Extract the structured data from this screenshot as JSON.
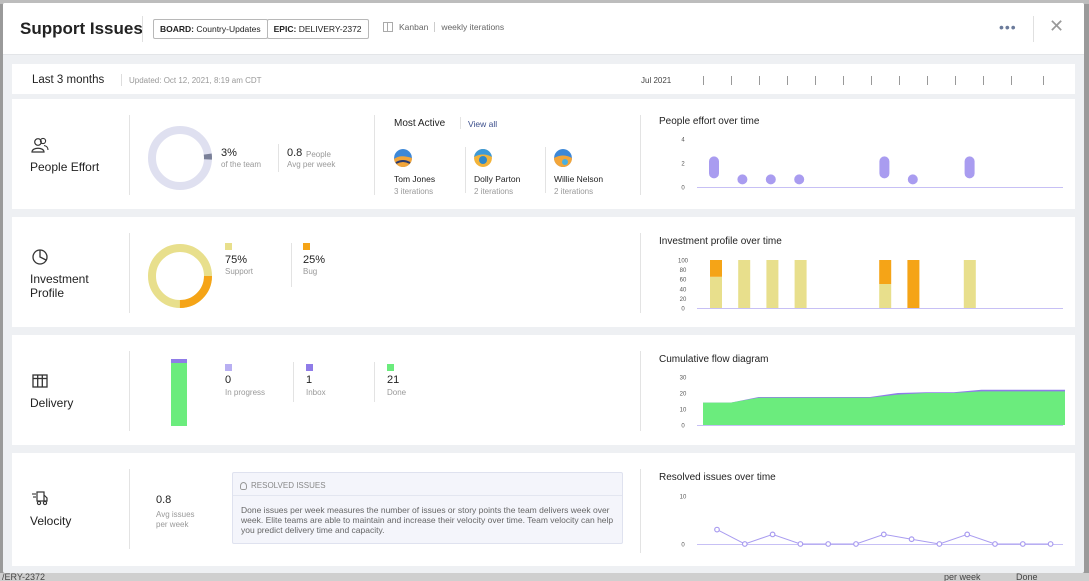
{
  "header": {
    "title": "Support Issues",
    "board_tag_key": "BOARD:",
    "board_tag_value": "Country-Updates",
    "epic_tag_key": "EPIC:",
    "epic_tag_value": "DELIVERY-2372",
    "board_type": "Kanban",
    "iterations": "weekly iterations",
    "more": "•••",
    "close": "✕"
  },
  "timebar": {
    "range": "Last 3 months",
    "updated": "Updated: Oct 12, 2021, 8:19 am CDT",
    "month": "Jul 2021"
  },
  "background": {
    "epic_fragment": "/ERY-2372",
    "per_week": "per week",
    "done": "Done"
  },
  "people_effort": {
    "label": "People Effort",
    "icon": "people-icon",
    "team_pct": "3%",
    "team_pct_sub": "of the team",
    "people": "0.8",
    "people_unit": "People",
    "people_sub": "Avg per week",
    "most_active_title": "Most Active",
    "view_all": "View all",
    "people_list": [
      {
        "name": "Tom Jones",
        "iterations": "3 iterations"
      },
      {
        "name": "Dolly Parton",
        "iterations": "2 iterations"
      },
      {
        "name": "Willie Nelson",
        "iterations": "2 iterations"
      }
    ],
    "chart_title": "People effort over time"
  },
  "investment_profile": {
    "label_line1": "Investment",
    "label_line2": "Profile",
    "icon": "pie-chart-icon",
    "support_pct": "75%",
    "support_label": "Support",
    "bug_pct": "25%",
    "bug_label": "Bug",
    "chart_title": "Investment profile over time"
  },
  "delivery": {
    "label": "Delivery",
    "icon": "table-grid-icon",
    "in_progress": "0",
    "in_progress_label": "In progress",
    "inbox": "1",
    "inbox_label": "Inbox",
    "done": "21",
    "done_label": "Done",
    "chart_title": "Cumulative flow diagram"
  },
  "velocity": {
    "label": "Velocity",
    "icon": "fast-truck-icon",
    "value": "0.8",
    "value_sub_line1": "Avg issues",
    "value_sub_line2": "per week",
    "info_title": "RESOLVED ISSUES",
    "info_text": "Done issues per week measures the number of issues or story points the team delivers week over week. Elite teams are able to maintain and increase their velocity over time. Team velocity can help you predict delivery time and capacity.",
    "chart_title": "Resolved issues over time"
  },
  "colors": {
    "purple": "#a99cf0",
    "yellow": "#e8df8c",
    "orange": "#f5a417",
    "green": "#6bec7d",
    "ring_grey": "#dfe0f0",
    "ring_dark": "#7a8098"
  },
  "chart_data": [
    {
      "type": "scatter",
      "title": "People effort over time",
      "ylim": [
        0,
        4
      ],
      "yticks": [
        "4",
        "2",
        "0"
      ],
      "points": [
        [
          1,
          1.8
        ],
        [
          2,
          0.8
        ],
        [
          3,
          0.8
        ],
        [
          4,
          0.8
        ],
        [
          7,
          1.8
        ],
        [
          8,
          0.8
        ],
        [
          10,
          1.8
        ]
      ]
    },
    {
      "type": "bar",
      "title": "Investment profile over time",
      "ylim": [
        0,
        100
      ],
      "yticks": [
        "100",
        "80",
        "60",
        "40",
        "20",
        "0"
      ],
      "series": [
        {
          "name": "Support",
          "values": [
            65,
            100,
            100,
            100,
            50,
            0,
            100
          ]
        },
        {
          "name": "Bug",
          "values": [
            35,
            0,
            0,
            0,
            50,
            100,
            0
          ]
        }
      ],
      "positions": [
        1,
        2,
        3,
        4,
        7,
        8,
        10
      ]
    },
    {
      "type": "area",
      "title": "Cumulative flow diagram",
      "ylim": [
        0,
        30
      ],
      "yticks": [
        "30",
        "20",
        "10",
        "0"
      ],
      "x": [
        0,
        1,
        2,
        3,
        4,
        5,
        6,
        7,
        8,
        9,
        10,
        11,
        12,
        13
      ],
      "series": [
        {
          "name": "Done",
          "values": [
            14,
            14,
            17,
            17,
            17,
            17,
            17,
            19,
            20,
            20,
            21,
            21,
            21,
            21
          ]
        },
        {
          "name": "Inbox",
          "values": [
            14,
            14,
            17.5,
            17.5,
            17.5,
            17.5,
            17.5,
            20,
            20.5,
            20.5,
            22,
            22,
            22,
            22
          ]
        }
      ]
    },
    {
      "type": "line",
      "title": "Resolved issues over time",
      "ylim": [
        0,
        10
      ],
      "yticks": [
        "10",
        "0"
      ],
      "values": [
        3,
        0,
        2,
        0,
        0,
        0,
        2,
        1,
        0,
        2,
        0,
        0,
        0
      ]
    }
  ]
}
